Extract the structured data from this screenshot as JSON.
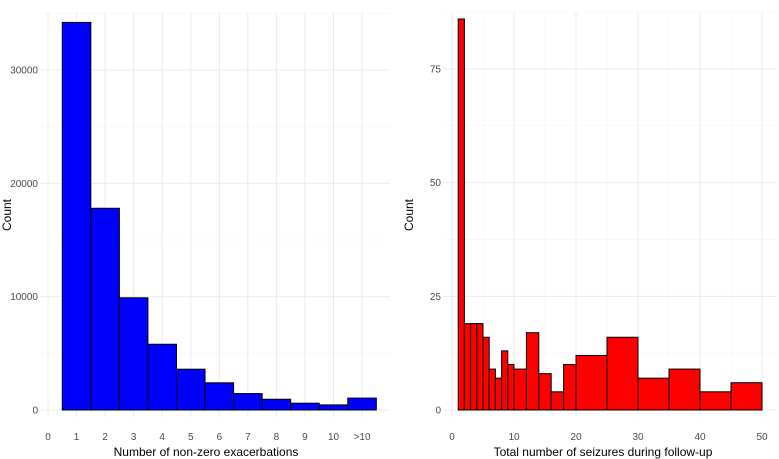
{
  "chart_data": [
    {
      "type": "bar",
      "xlabel": "Number of non-zero exacerbations",
      "ylabel": "Count",
      "bar_color": "#0000ff",
      "grid": true,
      "legend": "none",
      "xlim": [
        0,
        11.5
      ],
      "ylim": [
        0,
        34300
      ],
      "x_ticks": [
        {
          "value": 0,
          "label": "0"
        },
        {
          "value": 1,
          "label": "1"
        },
        {
          "value": 2,
          "label": "2"
        },
        {
          "value": 3,
          "label": "3"
        },
        {
          "value": 4,
          "label": "4"
        },
        {
          "value": 5,
          "label": "5"
        },
        {
          "value": 6,
          "label": "6"
        },
        {
          "value": 7,
          "label": "7"
        },
        {
          "value": 8,
          "label": "8"
        },
        {
          "value": 9,
          "label": "9"
        },
        {
          "value": 10,
          "label": "10"
        },
        {
          "value": 11,
          "label": ">10"
        }
      ],
      "y_ticks": [
        {
          "value": 0,
          "label": "0"
        },
        {
          "value": 10000,
          "label": "10000"
        },
        {
          "value": 20000,
          "label": "20000"
        },
        {
          "value": 30000,
          "label": "30000"
        }
      ],
      "bars": [
        {
          "x0": 0.5,
          "x1": 1.5,
          "value": 34200
        },
        {
          "x0": 1.5,
          "x1": 2.5,
          "value": 17800
        },
        {
          "x0": 2.5,
          "x1": 3.5,
          "value": 9900
        },
        {
          "x0": 3.5,
          "x1": 4.5,
          "value": 5800
        },
        {
          "x0": 4.5,
          "x1": 5.5,
          "value": 3600
        },
        {
          "x0": 5.5,
          "x1": 6.5,
          "value": 2400
        },
        {
          "x0": 6.5,
          "x1": 7.5,
          "value": 1450
        },
        {
          "x0": 7.5,
          "x1": 8.5,
          "value": 950
        },
        {
          "x0": 8.5,
          "x1": 9.5,
          "value": 600
        },
        {
          "x0": 9.5,
          "x1": 10.5,
          "value": 450
        },
        {
          "x0": 10.5,
          "x1": 11.5,
          "value": 1050
        }
      ]
    },
    {
      "type": "bar",
      "xlabel": "Total number of seizures during follow-up",
      "ylabel": "Count",
      "bar_color": "#ff0000",
      "grid": true,
      "legend": "none",
      "xlim": [
        0,
        50
      ],
      "ylim": [
        0,
        86
      ],
      "x_ticks": [
        {
          "value": 0,
          "label": "0"
        },
        {
          "value": 10,
          "label": "10"
        },
        {
          "value": 20,
          "label": "20"
        },
        {
          "value": 30,
          "label": "30"
        },
        {
          "value": 40,
          "label": "40"
        },
        {
          "value": 50,
          "label": "50"
        }
      ],
      "y_ticks": [
        {
          "value": 0,
          "label": "0"
        },
        {
          "value": 25,
          "label": "25"
        },
        {
          "value": 50,
          "label": "50"
        },
        {
          "value": 75,
          "label": "75"
        }
      ],
      "bars": [
        {
          "x0": 1,
          "x1": 2,
          "value": 86
        },
        {
          "x0": 2,
          "x1": 3,
          "value": 19
        },
        {
          "x0": 3,
          "x1": 4,
          "value": 19
        },
        {
          "x0": 4,
          "x1": 5,
          "value": 19
        },
        {
          "x0": 5,
          "x1": 6,
          "value": 16
        },
        {
          "x0": 6,
          "x1": 7,
          "value": 9
        },
        {
          "x0": 7,
          "x1": 8,
          "value": 7
        },
        {
          "x0": 8,
          "x1": 9,
          "value": 13
        },
        {
          "x0": 9,
          "x1": 10,
          "value": 10
        },
        {
          "x0": 10,
          "x1": 12,
          "value": 9
        },
        {
          "x0": 12,
          "x1": 14,
          "value": 17
        },
        {
          "x0": 14,
          "x1": 16,
          "value": 8
        },
        {
          "x0": 16,
          "x1": 18,
          "value": 4
        },
        {
          "x0": 18,
          "x1": 20,
          "value": 10
        },
        {
          "x0": 20,
          "x1": 25,
          "value": 12
        },
        {
          "x0": 25,
          "x1": 30,
          "value": 16
        },
        {
          "x0": 30,
          "x1": 35,
          "value": 7
        },
        {
          "x0": 35,
          "x1": 40,
          "value": 9
        },
        {
          "x0": 40,
          "x1": 45,
          "value": 4
        },
        {
          "x0": 45,
          "x1": 50,
          "value": 6
        }
      ]
    }
  ]
}
